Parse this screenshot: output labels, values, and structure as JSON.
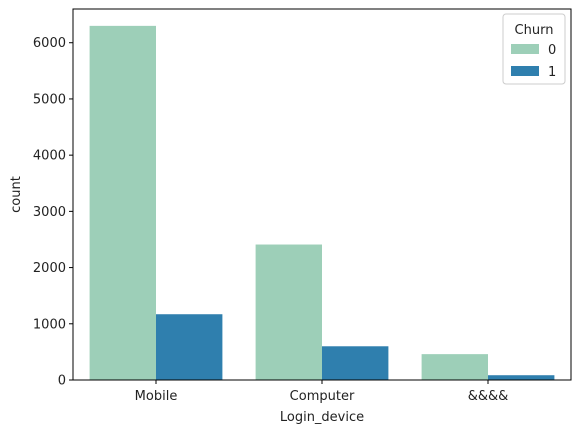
{
  "chart_data": {
    "type": "bar",
    "categories": [
      "Mobile",
      "Computer",
      "&&&&"
    ],
    "series": [
      {
        "name": "0",
        "values": [
          6300,
          2410,
          460
        ],
        "color": "#9dcfb8"
      },
      {
        "name": "1",
        "values": [
          1170,
          600,
          85
        ],
        "color": "#2f7fae"
      }
    ],
    "xlabel": "Login_device",
    "ylabel": "count",
    "ylim": [
      0,
      6600
    ],
    "yticks": [
      0,
      1000,
      2000,
      3000,
      4000,
      5000,
      6000
    ],
    "grid": false,
    "legend": {
      "title": "Churn",
      "position": "top-right"
    }
  }
}
